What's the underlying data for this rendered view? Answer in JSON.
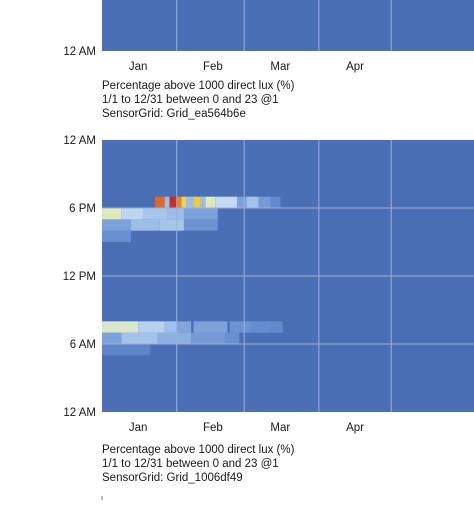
{
  "panels": [
    {
      "y_ticks": [
        "12 AM"
      ],
      "x_ticks": [
        "Jan",
        "Feb",
        "Mar",
        "Apr"
      ],
      "caption": [
        "Percentage above 1000 direct lux (%)",
        "1/1 to 12/31 between 0 and 23 @1",
        "SensorGrid: Grid_ea564b6e"
      ]
    },
    {
      "y_ticks": [
        "12 AM",
        "6 PM",
        "12 PM",
        "6 AM",
        "12 AM"
      ],
      "x_ticks": [
        "Jan",
        "Feb",
        "Mar",
        "Apr"
      ],
      "caption": [
        "Percentage above 1000 direct lux (%)",
        "1/1 to 12/31 between 0 and 23 @1",
        "SensorGrid: Grid_1006df49"
      ]
    }
  ],
  "colors": {
    "background": "#4a6fb5",
    "gridline": "#9fb0d4",
    "text": "#1a1a1a"
  },
  "chart_data": {
    "type": "heatmap",
    "title": "Percentage above 1000 direct lux (%)",
    "x_axis": {
      "type": "date",
      "domain": [
        "01-01",
        "12-31"
      ],
      "visible_ticks": [
        "Jan",
        "Feb",
        "Mar",
        "Apr"
      ]
    },
    "y_axis": {
      "unit": "hour",
      "domain": [
        0,
        24
      ],
      "tick_labels": [
        "12 AM",
        "6 AM",
        "12 PM",
        "6 PM",
        "12 AM"
      ]
    },
    "default_value": 0,
    "color_scale": [
      [
        0,
        "#4a6fb5"
      ],
      [
        0.15,
        "#6189cc"
      ],
      [
        0.3,
        "#9dbde8"
      ],
      [
        0.45,
        "#cde1f2"
      ],
      [
        0.6,
        "#e6eca0"
      ],
      [
        0.75,
        "#f1c232"
      ],
      [
        0.9,
        "#e0672c"
      ],
      [
        1,
        "#c1302a"
      ]
    ],
    "cells": [
      {
        "hour": 5,
        "days": [
          0,
          20
        ],
        "value": 0.12
      },
      {
        "hour": 6,
        "days": [
          0,
          8
        ],
        "value": 0.22
      },
      {
        "hour": 6,
        "days": [
          8,
          23
        ],
        "value": 0.32
      },
      {
        "hour": 6,
        "days": [
          23,
          37
        ],
        "value": 0.26
      },
      {
        "hour": 6,
        "days": [
          37,
          51
        ],
        "value": 0.2
      },
      {
        "hour": 6,
        "days": [
          51,
          57
        ],
        "value": 0.17
      },
      {
        "hour": 7,
        "days": [
          0,
          15
        ],
        "value": 0.52
      },
      {
        "hour": 7,
        "days": [
          15,
          26
        ],
        "value": 0.38
      },
      {
        "hour": 7,
        "days": [
          26,
          31
        ],
        "value": 0.31
      },
      {
        "hour": 7,
        "days": [
          31,
          37
        ],
        "value": 0.23
      },
      {
        "hour": 7,
        "days": [
          38,
          52
        ],
        "value": 0.22
      },
      {
        "hour": 7,
        "days": [
          53,
          62
        ],
        "value": 0.18
      },
      {
        "hour": 7,
        "days": [
          62,
          70
        ],
        "value": 0.16
      },
      {
        "hour": 7,
        "days": [
          70,
          75
        ],
        "value": 0.15
      },
      {
        "hour": 15,
        "days": [
          0,
          12
        ],
        "value": 0.17
      },
      {
        "hour": 16,
        "days": [
          0,
          12
        ],
        "value": 0.22
      },
      {
        "hour": 16,
        "days": [
          12,
          24
        ],
        "value": 0.3
      },
      {
        "hour": 16,
        "days": [
          24,
          34
        ],
        "value": 0.33
      },
      {
        "hour": 16,
        "days": [
          34,
          48
        ],
        "value": 0.18
      },
      {
        "hour": 17,
        "days": [
          0,
          8
        ],
        "value": 0.55
      },
      {
        "hour": 17,
        "days": [
          8,
          17
        ],
        "value": 0.4
      },
      {
        "hour": 17,
        "days": [
          17,
          27
        ],
        "value": 0.33
      },
      {
        "hour": 17,
        "days": [
          27,
          34
        ],
        "value": 0.3
      },
      {
        "hour": 17,
        "days": [
          34,
          48
        ],
        "value": 0.22
      },
      {
        "hour": 18,
        "days": [
          22,
          26
        ],
        "value": 0.9
      },
      {
        "hour": 18,
        "days": [
          26,
          28
        ],
        "value": 0.3
      },
      {
        "hour": 18,
        "days": [
          28,
          31
        ],
        "value": 1.0
      },
      {
        "hour": 18,
        "days": [
          31,
          33
        ],
        "value": 0.85
      },
      {
        "hour": 18,
        "days": [
          33,
          35
        ],
        "value": 0.7
      },
      {
        "hour": 18,
        "days": [
          35,
          38
        ],
        "value": 0.3
      },
      {
        "hour": 18,
        "days": [
          38,
          41
        ],
        "value": 0.72
      },
      {
        "hour": 18,
        "days": [
          41,
          43
        ],
        "value": 0.3
      },
      {
        "hour": 18,
        "days": [
          43,
          47
        ],
        "value": 0.55
      },
      {
        "hour": 18,
        "days": [
          47,
          56
        ],
        "value": 0.42
      },
      {
        "hour": 18,
        "days": [
          56,
          60
        ],
        "value": 0.22
      },
      {
        "hour": 18,
        "days": [
          60,
          65
        ],
        "value": 0.32
      },
      {
        "hour": 18,
        "days": [
          65,
          70
        ],
        "value": 0.2
      },
      {
        "hour": 18,
        "days": [
          70,
          74
        ],
        "value": 0.15
      }
    ]
  }
}
